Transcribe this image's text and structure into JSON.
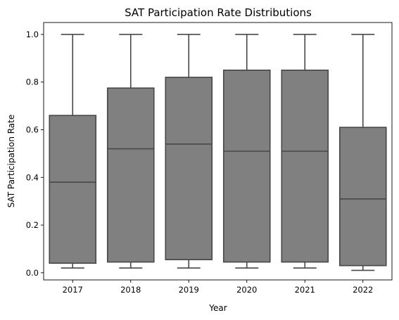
{
  "chart_data": {
    "type": "box",
    "title": "SAT Participation Rate Distributions",
    "xlabel": "Year",
    "ylabel": "SAT Participation Rate",
    "ylim": [
      -0.03,
      1.05
    ],
    "yticks": [
      "0.0",
      "0.2",
      "0.4",
      "0.6",
      "0.8",
      "1.0"
    ],
    "yticks_values": [
      0.0,
      0.2,
      0.4,
      0.6,
      0.8,
      1.0
    ],
    "categories": [
      "2017",
      "2018",
      "2019",
      "2020",
      "2021",
      "2022"
    ],
    "boxes": [
      {
        "category": "2017",
        "whisker_low": 0.02,
        "q1": 0.04,
        "median": 0.38,
        "q3": 0.66,
        "whisker_high": 1.0
      },
      {
        "category": "2018",
        "whisker_low": 0.02,
        "q1": 0.045,
        "median": 0.52,
        "q3": 0.775,
        "whisker_high": 1.0
      },
      {
        "category": "2019",
        "whisker_low": 0.02,
        "q1": 0.055,
        "median": 0.54,
        "q3": 0.82,
        "whisker_high": 1.0
      },
      {
        "category": "2020",
        "whisker_low": 0.02,
        "q1": 0.045,
        "median": 0.51,
        "q3": 0.85,
        "whisker_high": 1.0
      },
      {
        "category": "2021",
        "whisker_low": 0.02,
        "q1": 0.045,
        "median": 0.51,
        "q3": 0.85,
        "whisker_high": 1.0
      },
      {
        "category": "2022",
        "whisker_low": 0.01,
        "q1": 0.03,
        "median": 0.31,
        "q3": 0.61,
        "whisker_high": 1.0
      }
    ],
    "box_color": "#808080",
    "line_color": "#474747",
    "grid": false,
    "legend": "none"
  }
}
